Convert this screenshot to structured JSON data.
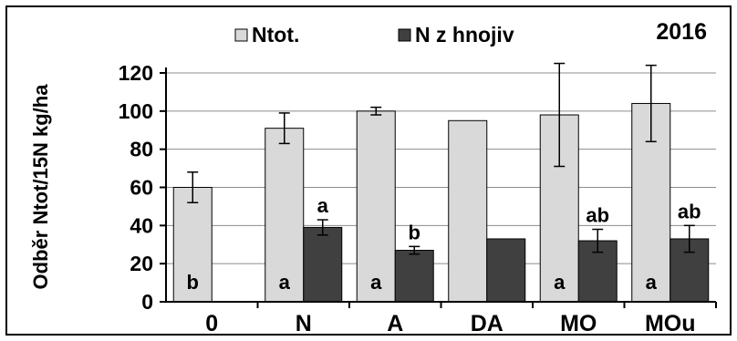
{
  "chart_data": {
    "type": "bar",
    "title": "2016",
    "ylabel": "Odběr Ntot/15N kg/ha",
    "xlabel": "",
    "ylim": [
      0,
      120
    ],
    "yticks": [
      0,
      20,
      40,
      60,
      80,
      100,
      120
    ],
    "categories": [
      "0",
      "N",
      "A",
      "DA",
      "MO",
      "MOu"
    ],
    "series": [
      {
        "name": "Ntot.",
        "color": "#d9d9d9",
        "values": [
          60,
          91,
          100,
          95,
          98,
          104
        ],
        "errors": [
          8,
          8,
          2,
          null,
          27,
          20
        ],
        "labels": [
          "b",
          "a",
          "a",
          "",
          "a",
          "a"
        ]
      },
      {
        "name": "N z hnojiv",
        "color": "#404040",
        "values": [
          null,
          39,
          27,
          33,
          32,
          33
        ],
        "errors": [
          null,
          4,
          2,
          null,
          6,
          7
        ],
        "labels": [
          "",
          "a",
          "b",
          "",
          "ab",
          "ab"
        ]
      }
    ],
    "legend_position": "top",
    "grid": true
  }
}
